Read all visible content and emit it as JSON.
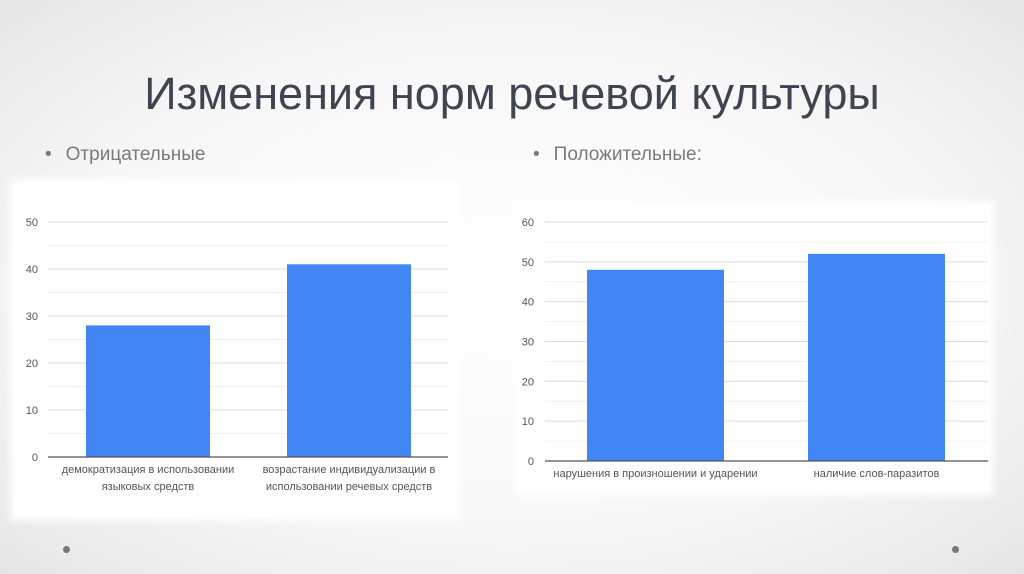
{
  "title": "Изменения норм речевой культуры",
  "bullets": [
    "Отрицательные",
    "Положительные:"
  ],
  "chart_data": [
    {
      "type": "bar",
      "categories": [
        [
          "демократизация в использовании",
          "языковых средств"
        ],
        [
          "возрастание индивидуализации в",
          "использовании речевых средств"
        ]
      ],
      "values": [
        28,
        41
      ],
      "ylim": [
        0,
        50
      ],
      "yticks": [
        "0",
        "10",
        "20",
        "30",
        "40",
        "50"
      ],
      "grid": true,
      "color": "#4285f4"
    },
    {
      "type": "bar",
      "categories": [
        [
          "нарушения в произношении и ударении"
        ],
        [
          "наличие слов-паразитов"
        ]
      ],
      "values": [
        48,
        52
      ],
      "ylim": [
        0,
        60
      ],
      "yticks": [
        "0",
        "10",
        "20",
        "30",
        "40",
        "50",
        "60"
      ],
      "grid": true,
      "color": "#4285f4"
    }
  ]
}
